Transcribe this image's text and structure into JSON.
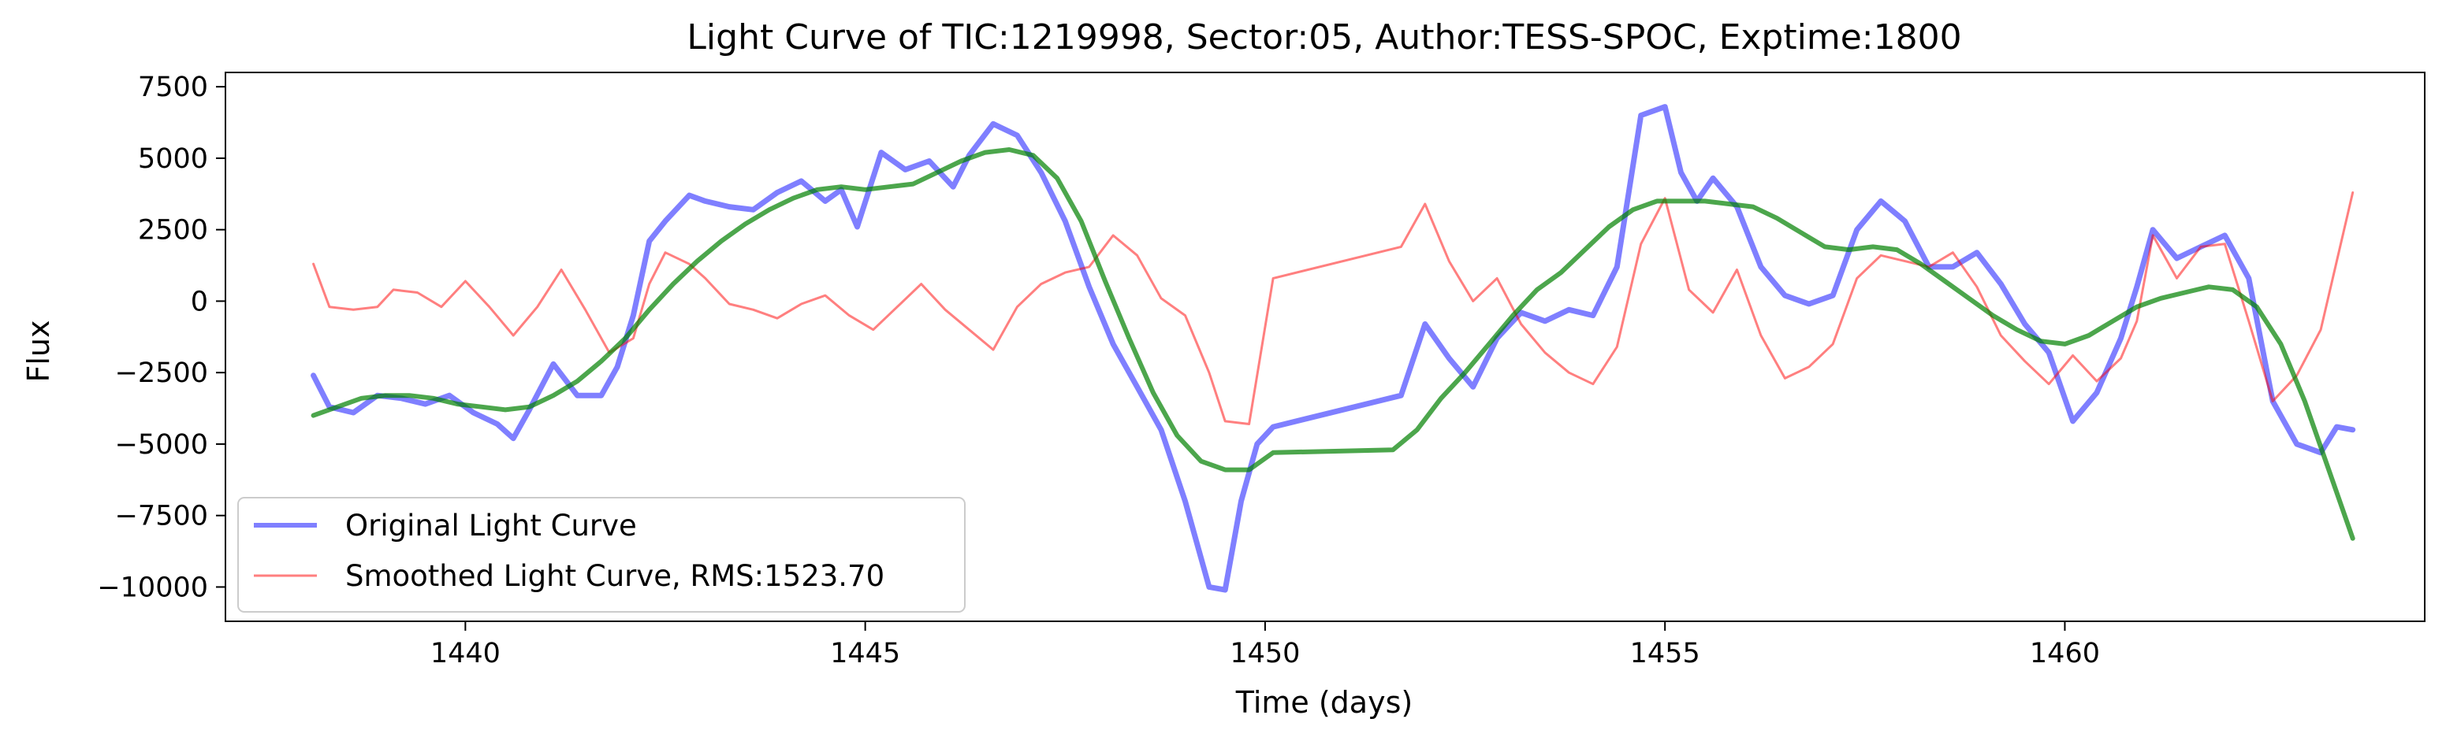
{
  "chart_data": {
    "type": "line",
    "title": "Light Curve of TIC:1219998, Sector:05, Author:TESS-SPOC, Exptime:1800",
    "xlabel": "Time (days)",
    "ylabel": "Flux",
    "xlim": [
      1437.0,
      1464.5
    ],
    "ylim": [
      -11200,
      8000
    ],
    "x_ticks": [
      {
        "value": 1440,
        "label": "1440"
      },
      {
        "value": 1445,
        "label": "1445"
      },
      {
        "value": 1450,
        "label": "1450"
      },
      {
        "value": 1455,
        "label": "1455"
      },
      {
        "value": 1460,
        "label": "1460"
      }
    ],
    "y_ticks": [
      {
        "value": 7500,
        "label": "7500"
      },
      {
        "value": 5000,
        "label": "5000"
      },
      {
        "value": 2500,
        "label": "2500"
      },
      {
        "value": 0,
        "label": "0"
      },
      {
        "value": -2500,
        "label": "−2500"
      },
      {
        "value": -5000,
        "label": "−5000"
      },
      {
        "value": -7500,
        "label": "−7500"
      },
      {
        "value": -10000,
        "label": "−10000"
      }
    ],
    "grid": false,
    "legend_position": "lower-left",
    "series": [
      {
        "name": "Original Light Curve",
        "color": "#0000ff",
        "opacity": 0.5,
        "style": "thick",
        "x": [
          1438.1,
          1438.3,
          1438.6,
          1438.9,
          1439.2,
          1439.5,
          1439.8,
          1440.1,
          1440.4,
          1440.6,
          1440.8,
          1441.1,
          1441.4,
          1441.7,
          1441.9,
          1442.1,
          1442.3,
          1442.5,
          1442.8,
          1443.0,
          1443.3,
          1443.6,
          1443.9,
          1444.2,
          1444.5,
          1444.7,
          1444.9,
          1445.2,
          1445.5,
          1445.8,
          1446.1,
          1446.3,
          1446.6,
          1446.9,
          1447.2,
          1447.5,
          1447.8,
          1448.1,
          1448.4,
          1448.7,
          1449.0,
          1449.3,
          1449.5,
          1449.7,
          1449.9,
          1450.1,
          1451.7,
          1452.0,
          1452.3,
          1452.6,
          1452.9,
          1453.2,
          1453.5,
          1453.8,
          1454.1,
          1454.4,
          1454.7,
          1455.0,
          1455.2,
          1455.4,
          1455.6,
          1455.9,
          1456.2,
          1456.5,
          1456.8,
          1457.1,
          1457.4,
          1457.7,
          1458.0,
          1458.3,
          1458.6,
          1458.9,
          1459.2,
          1459.5,
          1459.8,
          1460.1,
          1460.4,
          1460.7,
          1460.9,
          1461.1,
          1461.4,
          1461.7,
          1462.0,
          1462.3,
          1462.6,
          1462.9,
          1463.2,
          1463.4,
          1463.6
        ],
        "y": [
          -2600,
          -3700,
          -3900,
          -3300,
          -3400,
          -3600,
          -3300,
          -3900,
          -4300,
          -4800,
          -3800,
          -2200,
          -3300,
          -3300,
          -2300,
          -500,
          2100,
          2800,
          3700,
          3500,
          3300,
          3200,
          3800,
          4200,
          3500,
          3900,
          2600,
          5200,
          4600,
          4900,
          4000,
          5100,
          6200,
          5800,
          4500,
          2800,
          500,
          -1500,
          -3000,
          -4500,
          -7000,
          -10000,
          -10100,
          -7000,
          -5000,
          -4400,
          -3300,
          -800,
          -2000,
          -3000,
          -1300,
          -400,
          -700,
          -300,
          -500,
          1200,
          6500,
          6800,
          4500,
          3500,
          4300,
          3300,
          1200,
          200,
          -100,
          200,
          2500,
          3500,
          2800,
          1200,
          1200,
          1700,
          600,
          -800,
          -1800,
          -4200,
          -3200,
          -1300,
          500,
          2500,
          1500,
          1900,
          2300,
          800,
          -3500,
          -5000,
          -5300,
          -4400,
          -4500
        ]
      },
      {
        "name": "Smoothed Light Curve, RMS:1523.70",
        "color": "#ff0000",
        "opacity": 0.5,
        "style": "thin",
        "x": [
          1438.1,
          1438.3,
          1438.6,
          1438.9,
          1439.1,
          1439.4,
          1439.7,
          1440.0,
          1440.3,
          1440.6,
          1440.9,
          1441.2,
          1441.5,
          1441.8,
          1442.1,
          1442.3,
          1442.5,
          1442.8,
          1443.0,
          1443.3,
          1443.6,
          1443.9,
          1444.2,
          1444.5,
          1444.8,
          1445.1,
          1445.4,
          1445.7,
          1446.0,
          1446.3,
          1446.6,
          1446.9,
          1447.2,
          1447.5,
          1447.8,
          1448.1,
          1448.4,
          1448.7,
          1449.0,
          1449.3,
          1449.5,
          1449.8,
          1450.1,
          1451.7,
          1452.0,
          1452.3,
          1452.6,
          1452.9,
          1453.2,
          1453.5,
          1453.8,
          1454.1,
          1454.4,
          1454.7,
          1455.0,
          1455.3,
          1455.6,
          1455.9,
          1456.2,
          1456.5,
          1456.8,
          1457.1,
          1457.4,
          1457.7,
          1458.0,
          1458.3,
          1458.6,
          1458.9,
          1459.2,
          1459.5,
          1459.8,
          1460.1,
          1460.4,
          1460.7,
          1460.9,
          1461.1,
          1461.4,
          1461.7,
          1462.0,
          1462.3,
          1462.6,
          1462.9,
          1463.2,
          1463.4,
          1463.6
        ],
        "y": [
          1300,
          -200,
          -300,
          -200,
          400,
          300,
          -200,
          700,
          -200,
          -1200,
          -200,
          1100,
          -300,
          -1800,
          -1300,
          600,
          1700,
          1300,
          800,
          -100,
          -300,
          -600,
          -100,
          200,
          -500,
          -1000,
          -200,
          600,
          -300,
          -1000,
          -1700,
          -200,
          600,
          1000,
          1200,
          2300,
          1600,
          100,
          -500,
          -2500,
          -4200,
          -4300,
          800,
          1900,
          3400,
          1400,
          0,
          800,
          -800,
          -1800,
          -2500,
          -2900,
          -1600,
          2000,
          3600,
          400,
          -400,
          1100,
          -1200,
          -2700,
          -2300,
          -1500,
          800,
          1600,
          1400,
          1200,
          1700,
          500,
          -1200,
          -2100,
          -2900,
          -1900,
          -2800,
          -2000,
          -700,
          2300,
          800,
          1900,
          2000,
          -700,
          -3500,
          -2600,
          -1000,
          1400,
          3800
        ]
      },
      {
        "name": "",
        "color": "#008000",
        "opacity": 0.7,
        "style": "medium",
        "x": [
          1438.1,
          1438.4,
          1438.7,
          1439.0,
          1439.3,
          1439.6,
          1439.9,
          1440.2,
          1440.5,
          1440.8,
          1441.1,
          1441.4,
          1441.7,
          1442.0,
          1442.3,
          1442.6,
          1442.9,
          1443.2,
          1443.5,
          1443.8,
          1444.1,
          1444.4,
          1444.7,
          1445.0,
          1445.3,
          1445.6,
          1445.9,
          1446.2,
          1446.5,
          1446.8,
          1447.1,
          1447.4,
          1447.7,
          1448.0,
          1448.3,
          1448.6,
          1448.9,
          1449.2,
          1449.5,
          1449.8,
          1450.1,
          1451.6,
          1451.9,
          1452.2,
          1452.5,
          1452.8,
          1453.1,
          1453.4,
          1453.7,
          1454.0,
          1454.3,
          1454.6,
          1454.9,
          1455.2,
          1455.5,
          1455.8,
          1456.1,
          1456.4,
          1456.7,
          1457.0,
          1457.3,
          1457.6,
          1457.9,
          1458.2,
          1458.5,
          1458.8,
          1459.1,
          1459.4,
          1459.7,
          1460.0,
          1460.3,
          1460.6,
          1460.9,
          1461.2,
          1461.5,
          1461.8,
          1462.1,
          1462.4,
          1462.7,
          1463.0,
          1463.3,
          1463.6
        ],
        "y": [
          -4000,
          -3700,
          -3400,
          -3300,
          -3300,
          -3400,
          -3600,
          -3700,
          -3800,
          -3700,
          -3300,
          -2800,
          -2100,
          -1300,
          -300,
          600,
          1400,
          2100,
          2700,
          3200,
          3600,
          3900,
          4000,
          3900,
          4000,
          4100,
          4500,
          4900,
          5200,
          5300,
          5100,
          4300,
          2800,
          700,
          -1300,
          -3200,
          -4700,
          -5600,
          -5900,
          -5900,
          -5300,
          -5200,
          -4500,
          -3400,
          -2500,
          -1500,
          -500,
          400,
          1000,
          1800,
          2600,
          3200,
          3500,
          3500,
          3500,
          3400,
          3300,
          2900,
          2400,
          1900,
          1800,
          1900,
          1800,
          1300,
          700,
          100,
          -500,
          -1000,
          -1400,
          -1500,
          -1200,
          -700,
          -200,
          100,
          300,
          500,
          400,
          -200,
          -1500,
          -3500,
          -5900,
          -8300
        ]
      }
    ]
  }
}
